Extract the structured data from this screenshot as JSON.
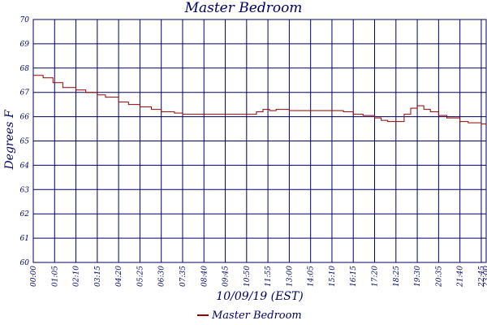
{
  "chart_data": {
    "type": "line",
    "title": "Master Bedroom",
    "xlabel": "10/09/19 (EST)",
    "ylabel": "Degrees F",
    "ylim": [
      60,
      70
    ],
    "yticks": [
      "60",
      "61",
      "62",
      "63",
      "64",
      "65",
      "66",
      "67",
      "68",
      "69",
      "70"
    ],
    "xticks": [
      "00:00",
      "01:05",
      "02:10",
      "03:15",
      "04:20",
      "05:25",
      "06:30",
      "07:35",
      "08:40",
      "09:45",
      "10:50",
      "11:55",
      "13:00",
      "14:05",
      "15:10",
      "16:15",
      "17:20",
      "18:25",
      "19:30",
      "20:35",
      "21:40",
      "22:45",
      "23:00"
    ],
    "grid": true,
    "legend": "bottom-center",
    "series": [
      {
        "name": "Master Bedroom",
        "color": "#990000",
        "x": [
          "00:00",
          "00:30",
          "01:00",
          "01:30",
          "02:10",
          "02:40",
          "03:15",
          "03:40",
          "04:20",
          "04:50",
          "05:25",
          "06:00",
          "06:30",
          "07:10",
          "07:35",
          "08:10",
          "08:40",
          "09:15",
          "09:45",
          "10:20",
          "10:50",
          "11:20",
          "11:40",
          "12:00",
          "12:20",
          "13:00",
          "13:30",
          "14:05",
          "14:40",
          "15:10",
          "15:45",
          "16:15",
          "16:45",
          "17:20",
          "17:40",
          "18:00",
          "18:25",
          "18:50",
          "19:10",
          "19:30",
          "19:50",
          "20:10",
          "20:35",
          "21:00",
          "21:40",
          "22:05",
          "22:45",
          "23:00"
        ],
        "values": [
          67.7,
          67.6,
          67.4,
          67.2,
          67.1,
          67.0,
          66.9,
          66.8,
          66.6,
          66.5,
          66.4,
          66.3,
          66.2,
          66.15,
          66.1,
          66.1,
          66.1,
          66.1,
          66.1,
          66.1,
          66.1,
          66.2,
          66.3,
          66.25,
          66.3,
          66.25,
          66.25,
          66.25,
          66.25,
          66.25,
          66.2,
          66.1,
          66.05,
          65.95,
          65.85,
          65.8,
          65.8,
          66.1,
          66.35,
          66.45,
          66.3,
          66.2,
          66.05,
          65.95,
          65.8,
          65.75,
          65.7,
          65.7
        ]
      }
    ]
  }
}
